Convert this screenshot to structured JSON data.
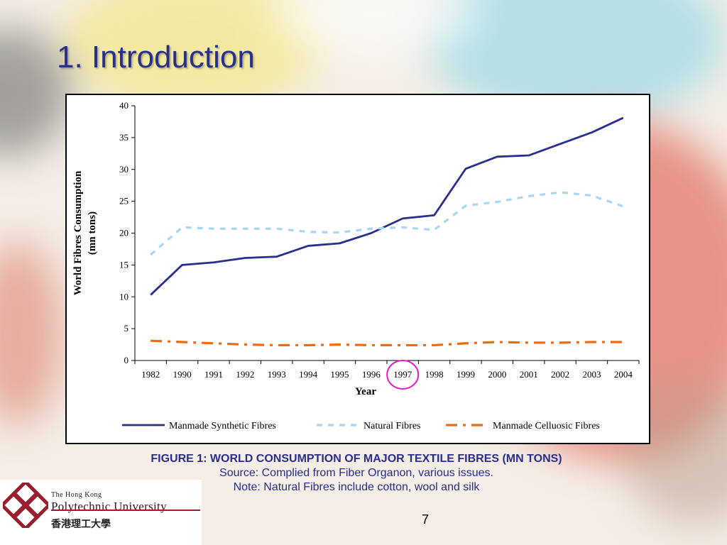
{
  "slide": {
    "title": "1. Introduction",
    "page_number": "7"
  },
  "caption": {
    "figure": "FIGURE 1: WORLD CONSUMPTION OF MAJOR TEXTILE FIBRES (MN TONS)",
    "source": "Source: Complied from Fiber Organon, various issues.",
    "note": "Note: Natural Fibres include cotton, wool and silk"
  },
  "logo": {
    "line1": "The Hong Kong",
    "line2": "Polytechnic University",
    "line3": "香港理工大學",
    "color": "#9a1f2e"
  },
  "chart_data": {
    "type": "line",
    "xlabel": "Year",
    "ylabel": "World Fibres Consumption (mn tons)",
    "ylabel_lines": [
      "World Fibres Consumption",
      "(mn tons)"
    ],
    "ylim": [
      0,
      40
    ],
    "yticks": [
      0,
      5,
      10,
      15,
      20,
      25,
      30,
      35,
      40
    ],
    "categories": [
      "1982",
      "1990",
      "1991",
      "1992",
      "1993",
      "1994",
      "1995",
      "1996",
      "1997",
      "1998",
      "1999",
      "2000",
      "2001",
      "2002",
      "2003",
      "2004"
    ],
    "highlighted_category": "1997",
    "highlight_color": "#e020c0",
    "legend_position": "bottom",
    "grid": false,
    "series": [
      {
        "name": "Manmade Synthetic Fibres",
        "style": "solid",
        "color": "#2a2e8c",
        "values": [
          10.3,
          15.0,
          15.4,
          16.1,
          16.3,
          18.0,
          18.4,
          20.0,
          22.3,
          22.8,
          30.1,
          32.0,
          32.2,
          34.0,
          35.8,
          38.1
        ]
      },
      {
        "name": "Natural Fibres",
        "style": "dashed",
        "color": "#a9d6f5",
        "values": [
          16.6,
          20.9,
          20.7,
          20.7,
          20.7,
          20.2,
          20.1,
          20.7,
          20.9,
          20.5,
          24.3,
          24.9,
          25.8,
          26.4,
          25.9,
          24.2
        ]
      },
      {
        "name": "Manmade Celluosic Fibres",
        "style": "dashdot",
        "color": "#f06a10",
        "values": [
          3.1,
          2.9,
          2.7,
          2.5,
          2.4,
          2.4,
          2.5,
          2.4,
          2.4,
          2.4,
          2.7,
          2.9,
          2.8,
          2.8,
          2.9,
          2.9
        ]
      }
    ]
  }
}
